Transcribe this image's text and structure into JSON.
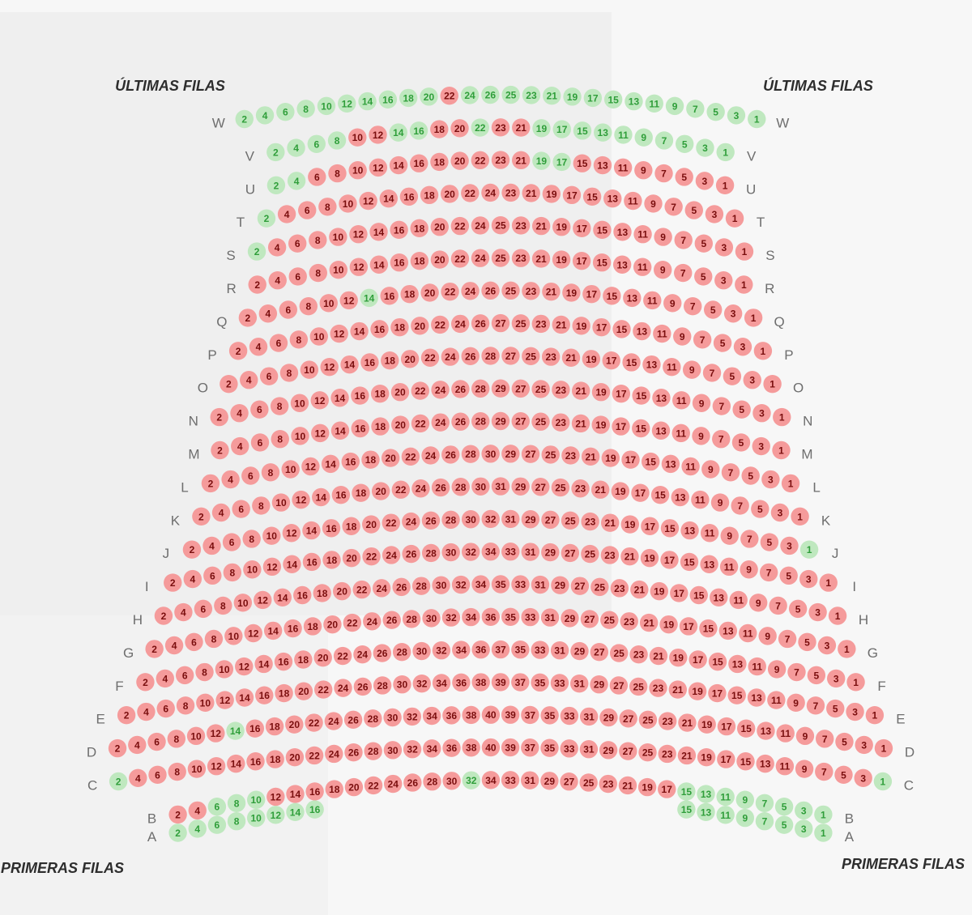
{
  "headers": {
    "top_left": "ÚLTIMAS FILAS",
    "top_right": "ÚLTIMAS FILAS",
    "bottom_left": "PRIMERAS FILAS",
    "bottom_right": "PRIMERAS FILAS"
  },
  "colors": {
    "free": "#bfe8bf",
    "free_text": "#2f9e3a",
    "sold": "#f59b9b",
    "sold_text": "#7a0e0e"
  },
  "rows": [
    {
      "label": "W",
      "seats": [
        2,
        4,
        6,
        8,
        10,
        12,
        14,
        16,
        18,
        20,
        22,
        24,
        26,
        25,
        23,
        21,
        19,
        17,
        15,
        13,
        11,
        9,
        7,
        5,
        3,
        1
      ],
      "free": [
        2,
        4,
        6,
        8,
        10,
        12,
        14,
        16,
        18,
        20,
        24,
        26,
        25,
        23,
        21,
        19,
        17,
        15,
        13,
        11,
        9,
        7,
        5,
        3,
        1
      ]
    },
    {
      "label": "V",
      "seats": [
        2,
        4,
        6,
        8,
        10,
        12,
        14,
        16,
        18,
        20,
        22,
        23,
        21,
        19,
        17,
        15,
        13,
        11,
        9,
        7,
        5,
        3,
        1
      ],
      "free": [
        2,
        4,
        6,
        8,
        14,
        16,
        22,
        19,
        17,
        15,
        13,
        11,
        9,
        7,
        5,
        3,
        1
      ]
    },
    {
      "label": "U",
      "seats": [
        2,
        4,
        6,
        8,
        10,
        12,
        14,
        16,
        18,
        20,
        22,
        23,
        21,
        19,
        17,
        15,
        13,
        11,
        9,
        7,
        5,
        3,
        1
      ],
      "free": [
        2,
        4,
        19,
        17
      ]
    },
    {
      "label": "T",
      "seats": [
        2,
        4,
        6,
        8,
        10,
        12,
        14,
        16,
        18,
        20,
        22,
        24,
        23,
        21,
        19,
        17,
        15,
        13,
        11,
        9,
        7,
        5,
        3,
        1
      ],
      "free": [
        2
      ]
    },
    {
      "label": "S",
      "seats": [
        2,
        4,
        6,
        8,
        10,
        12,
        14,
        16,
        18,
        20,
        22,
        24,
        25,
        23,
        21,
        19,
        17,
        15,
        13,
        11,
        9,
        7,
        5,
        3,
        1
      ],
      "free": [
        2
      ]
    },
    {
      "label": "R",
      "seats": [
        2,
        4,
        6,
        8,
        10,
        12,
        14,
        16,
        18,
        20,
        22,
        24,
        25,
        23,
        21,
        19,
        17,
        15,
        13,
        11,
        9,
        7,
        5,
        3,
        1
      ],
      "free": []
    },
    {
      "label": "Q",
      "seats": [
        2,
        4,
        6,
        8,
        10,
        12,
        14,
        16,
        18,
        20,
        22,
        24,
        26,
        25,
        23,
        21,
        19,
        17,
        15,
        13,
        11,
        9,
        7,
        5,
        3,
        1
      ],
      "free": [
        14
      ]
    },
    {
      "label": "P",
      "seats": [
        2,
        4,
        6,
        8,
        10,
        12,
        14,
        16,
        18,
        20,
        22,
        24,
        26,
        27,
        25,
        23,
        21,
        19,
        17,
        15,
        13,
        11,
        9,
        7,
        5,
        3,
        1
      ],
      "free": []
    },
    {
      "label": "O",
      "seats": [
        2,
        4,
        6,
        8,
        10,
        12,
        14,
        16,
        18,
        20,
        22,
        24,
        26,
        28,
        27,
        25,
        23,
        21,
        19,
        17,
        15,
        13,
        11,
        9,
        7,
        5,
        3,
        1
      ],
      "free": []
    },
    {
      "label": "N",
      "seats": [
        2,
        4,
        6,
        8,
        10,
        12,
        14,
        16,
        18,
        20,
        22,
        24,
        26,
        28,
        29,
        27,
        25,
        23,
        21,
        19,
        17,
        15,
        13,
        11,
        9,
        7,
        5,
        3,
        1
      ],
      "free": []
    },
    {
      "label": "M",
      "seats": [
        2,
        4,
        6,
        8,
        10,
        12,
        14,
        16,
        18,
        20,
        22,
        24,
        26,
        28,
        29,
        27,
        25,
        23,
        21,
        19,
        17,
        15,
        13,
        11,
        9,
        7,
        5,
        3,
        1
      ],
      "free": []
    },
    {
      "label": "L",
      "seats": [
        2,
        4,
        6,
        8,
        10,
        12,
        14,
        16,
        18,
        20,
        22,
        24,
        26,
        28,
        30,
        29,
        27,
        25,
        23,
        21,
        19,
        17,
        15,
        13,
        11,
        9,
        7,
        5,
        3,
        1
      ],
      "free": []
    },
    {
      "label": "K",
      "seats": [
        2,
        4,
        6,
        8,
        10,
        12,
        14,
        16,
        18,
        20,
        22,
        24,
        26,
        28,
        30,
        31,
        29,
        27,
        25,
        23,
        21,
        19,
        17,
        15,
        13,
        11,
        9,
        7,
        5,
        3,
        1
      ],
      "free": []
    },
    {
      "label": "J",
      "seats": [
        2,
        4,
        6,
        8,
        10,
        12,
        14,
        16,
        18,
        20,
        22,
        24,
        26,
        28,
        30,
        32,
        31,
        29,
        27,
        25,
        23,
        21,
        19,
        17,
        15,
        13,
        11,
        9,
        7,
        5,
        3,
        1
      ],
      "free": [
        1
      ]
    },
    {
      "label": "I",
      "seats": [
        2,
        4,
        6,
        8,
        10,
        12,
        14,
        16,
        18,
        20,
        22,
        24,
        26,
        28,
        30,
        32,
        34,
        33,
        31,
        29,
        27,
        25,
        23,
        21,
        19,
        17,
        15,
        13,
        11,
        9,
        7,
        5,
        3,
        1
      ],
      "free": []
    },
    {
      "label": "H",
      "seats": [
        2,
        4,
        6,
        8,
        10,
        12,
        14,
        16,
        18,
        20,
        22,
        24,
        26,
        28,
        30,
        32,
        34,
        35,
        33,
        31,
        29,
        27,
        25,
        23,
        21,
        19,
        17,
        15,
        13,
        11,
        9,
        7,
        5,
        3,
        1
      ],
      "free": []
    },
    {
      "label": "G",
      "seats": [
        2,
        4,
        6,
        8,
        10,
        12,
        14,
        16,
        18,
        20,
        22,
        24,
        26,
        28,
        30,
        32,
        34,
        36,
        35,
        33,
        31,
        29,
        27,
        25,
        23,
        21,
        19,
        17,
        15,
        13,
        11,
        9,
        7,
        5,
        3,
        1
      ],
      "free": []
    },
    {
      "label": "F",
      "seats": [
        2,
        4,
        6,
        8,
        10,
        12,
        14,
        16,
        18,
        20,
        22,
        24,
        26,
        28,
        30,
        32,
        34,
        36,
        37,
        35,
        33,
        31,
        29,
        27,
        25,
        23,
        21,
        19,
        17,
        15,
        13,
        11,
        9,
        7,
        5,
        3,
        1
      ],
      "free": []
    },
    {
      "label": "E",
      "seats": [
        2,
        4,
        6,
        8,
        10,
        12,
        14,
        16,
        18,
        20,
        22,
        24,
        26,
        28,
        30,
        32,
        34,
        36,
        38,
        39,
        37,
        35,
        33,
        31,
        29,
        27,
        25,
        23,
        21,
        19,
        17,
        15,
        13,
        11,
        9,
        7,
        5,
        3,
        1
      ],
      "free": []
    },
    {
      "label": "D",
      "seats": [
        2,
        4,
        6,
        8,
        10,
        12,
        14,
        16,
        18,
        20,
        22,
        24,
        26,
        28,
        30,
        32,
        34,
        36,
        38,
        40,
        39,
        37,
        35,
        33,
        31,
        29,
        27,
        25,
        23,
        21,
        19,
        17,
        15,
        13,
        11,
        9,
        7,
        5,
        3,
        1
      ],
      "free": [
        14
      ]
    },
    {
      "label": "C",
      "seats": [
        2,
        4,
        6,
        8,
        10,
        12,
        14,
        16,
        18,
        20,
        22,
        24,
        26,
        28,
        30,
        32,
        34,
        36,
        38,
        40,
        39,
        37,
        35,
        33,
        31,
        29,
        27,
        25,
        23,
        21,
        19,
        17,
        15,
        13,
        11,
        9,
        7,
        5,
        3,
        1
      ],
      "free": [
        2,
        1
      ]
    },
    {
      "label": "B",
      "seats": [
        2,
        4,
        6,
        8,
        10,
        12,
        14,
        16,
        18,
        20,
        22,
        24,
        26,
        28,
        30,
        32,
        34,
        33,
        31,
        29,
        27,
        25,
        23,
        21,
        19,
        17,
        15,
        13,
        11,
        9,
        7,
        5,
        3,
        1
      ],
      "free": [
        6,
        8,
        10,
        32,
        15,
        13,
        11,
        9,
        7,
        5,
        3,
        1
      ]
    },
    {
      "label": "A",
      "seats": [
        2,
        4,
        6,
        8,
        10,
        12,
        14,
        16,
        15,
        13,
        11,
        9,
        7,
        5,
        3,
        1
      ],
      "free": [
        2,
        4,
        6,
        8,
        10,
        12,
        14,
        16,
        15,
        13,
        11,
        9,
        7,
        5,
        3,
        1
      ]
    }
  ]
}
